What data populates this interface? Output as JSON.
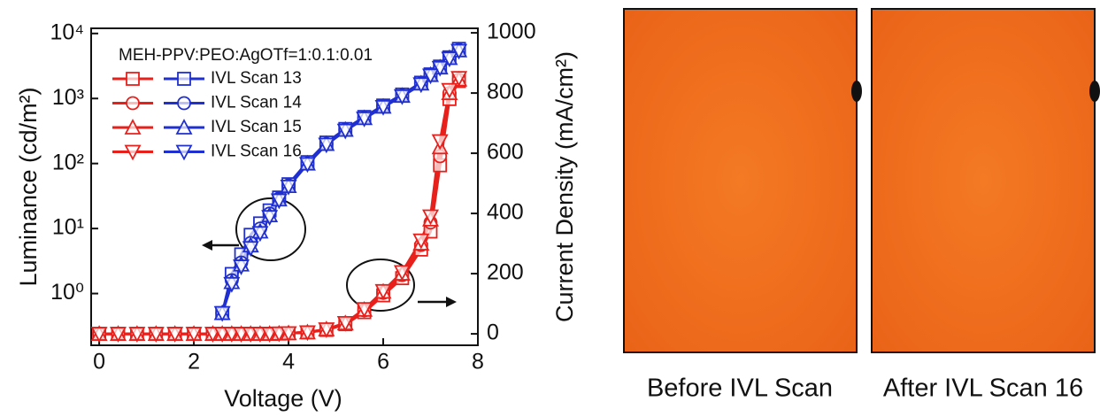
{
  "chart_data": {
    "type": "line",
    "x_label": "Voltage (V)",
    "y_label": "Luminance (cd/m²)",
    "y2_label": "Current Density (mA/cm²)",
    "legend_title": "MEH-PPV:PEO:AgOTf=1:0.1:0.01",
    "legend_position": "upper left",
    "x": [
      0,
      0.4,
      0.8,
      1.2,
      1.6,
      2.0,
      2.4,
      2.6,
      2.8,
      3.0,
      3.2,
      3.4,
      3.6,
      3.8,
      4.0,
      4.4,
      4.8,
      5.2,
      5.6,
      6.0,
      6.4,
      6.8,
      7.0,
      7.2,
      7.4,
      7.6
    ],
    "xlim": [
      -0.17,
      8
    ],
    "xticks": [
      0,
      2,
      4,
      6,
      8
    ],
    "ylim": [
      0.16,
      12000
    ],
    "y_scale": "log",
    "yticks": [
      {
        "value": 1,
        "label": "10⁰"
      },
      {
        "value": 10,
        "label": "10¹"
      },
      {
        "value": 100,
        "label": "10²"
      },
      {
        "value": 1000,
        "label": "10³"
      },
      {
        "value": 10000,
        "label": "10⁴"
      }
    ],
    "y2lim": [
      -38,
      1015
    ],
    "y2ticks": [
      0,
      200,
      400,
      600,
      800,
      1000
    ],
    "series": [
      {
        "name": "IVL Scan 13",
        "marker": "square",
        "color": "#1f2fd0",
        "y2_color": "#e8201c",
        "values": [
          null,
          null,
          null,
          null,
          null,
          null,
          null,
          0.5,
          2,
          4,
          8,
          12,
          19,
          30,
          48,
          105,
          210,
          340,
          520,
          780,
          1150,
          1750,
          2350,
          3100,
          4300,
          5800
        ],
        "y2_values": [
          0,
          0,
          0,
          0,
          0,
          0,
          0,
          0,
          0,
          0,
          0,
          0,
          0,
          1,
          2,
          5,
          13,
          32,
          72,
          128,
          185,
          280,
          340,
          560,
          780,
          840
        ]
      },
      {
        "name": "IVL Scan 14",
        "marker": "circle",
        "color": "#1f2fd0",
        "y2_color": "#e8201c",
        "values": [
          null,
          null,
          null,
          null,
          null,
          null,
          null,
          0.5,
          1.6,
          3,
          6,
          10,
          17,
          29,
          46,
          100,
          200,
          330,
          500,
          760,
          1100,
          1700,
          2300,
          3000,
          4200,
          5600
        ],
        "y2_values": [
          0,
          0,
          0,
          0,
          0,
          0,
          0,
          0,
          0,
          0,
          0,
          0,
          0,
          1,
          2,
          5,
          14,
          34,
          78,
          136,
          195,
          295,
          370,
          590,
          800,
          845
        ]
      },
      {
        "name": "IVL Scan 15",
        "marker": "triangle-up",
        "color": "#1f2fd0",
        "y2_color": "#e8201c",
        "values": [
          null,
          null,
          null,
          null,
          null,
          null,
          null,
          0.5,
          1.5,
          2.8,
          5.5,
          9,
          16,
          28,
          45,
          100,
          200,
          330,
          500,
          750,
          1100,
          1700,
          2300,
          3000,
          4200,
          5500
        ],
        "y2_values": [
          0,
          0,
          0,
          0,
          0,
          0,
          0,
          0,
          0,
          0,
          0,
          0,
          0,
          1,
          2,
          5,
          15,
          35,
          80,
          140,
          200,
          300,
          380,
          620,
          800,
          845
        ]
      },
      {
        "name": "IVL Scan 16",
        "marker": "triangle-down",
        "color": "#1f2fd0",
        "y2_color": "#e8201c",
        "values": [
          null,
          null,
          null,
          null,
          null,
          null,
          null,
          0.5,
          1.4,
          2.6,
          5,
          8.5,
          15,
          27,
          44,
          98,
          195,
          320,
          490,
          740,
          1080,
          1650,
          2250,
          2950,
          4100,
          5400
        ],
        "y2_values": [
          0,
          0,
          0,
          0,
          0,
          0,
          0,
          0,
          0,
          0,
          0,
          0,
          0,
          1,
          2,
          5,
          15,
          36,
          82,
          142,
          205,
          310,
          390,
          640,
          810,
          850
        ]
      }
    ]
  },
  "photos": [
    {
      "caption": "Before IVL Scan"
    },
    {
      "caption": "After IVL Scan 16"
    }
  ]
}
